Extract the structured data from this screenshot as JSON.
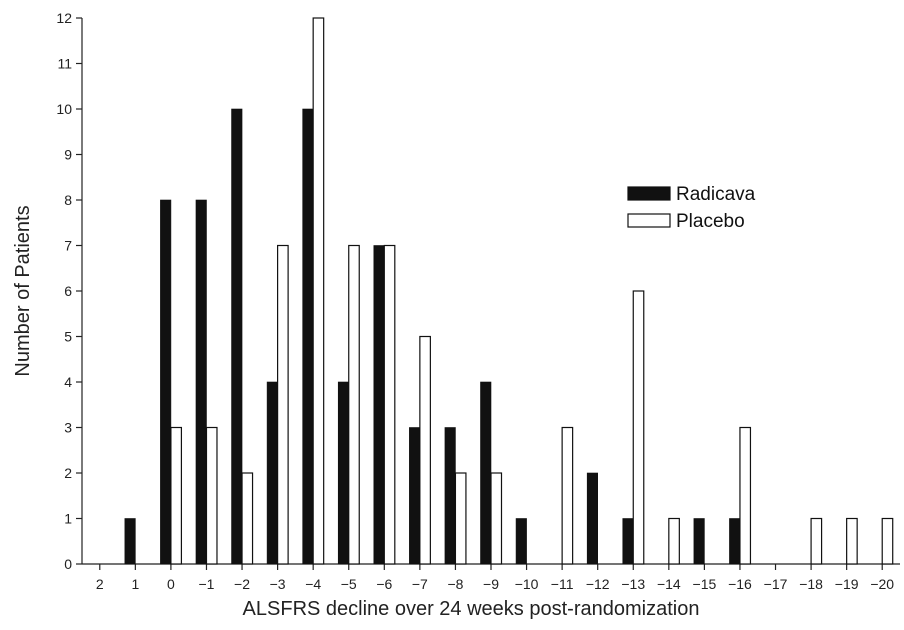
{
  "chart_data": {
    "type": "bar",
    "xlabel": "ALSFRS decline over 24 weeks post-randomization",
    "ylabel": "Number of Patients",
    "ylim": [
      0,
      12
    ],
    "yticks": [
      "0",
      "1",
      "2",
      "3",
      "4",
      "5",
      "6",
      "7",
      "8",
      "9",
      "10",
      "11",
      "12"
    ],
    "categories": [
      "2",
      "1",
      "0",
      "−1",
      "−2",
      "−3",
      "−4",
      "−5",
      "−6",
      "−7",
      "−8",
      "−9",
      "−10",
      "−11",
      "−12",
      "−13",
      "−14",
      "−15",
      "−16",
      "−17",
      "−18",
      "−19",
      "−20"
    ],
    "series": [
      {
        "name": "Radicava",
        "color": "#111111",
        "fill": "solid",
        "values": [
          0,
          1,
          8,
          8,
          10,
          4,
          10,
          4,
          7,
          3,
          3,
          4,
          1,
          0,
          2,
          1,
          0,
          1,
          1,
          0,
          0,
          0,
          0
        ]
      },
      {
        "name": "Placebo",
        "color": "#ffffff",
        "fill": "outline",
        "values": [
          0,
          0,
          3,
          3,
          2,
          7,
          12,
          7,
          7,
          5,
          2,
          2,
          0,
          3,
          0,
          6,
          1,
          0,
          3,
          0,
          1,
          1,
          1
        ]
      }
    ],
    "legend": {
      "position": "upper-right"
    },
    "grid": false
  }
}
